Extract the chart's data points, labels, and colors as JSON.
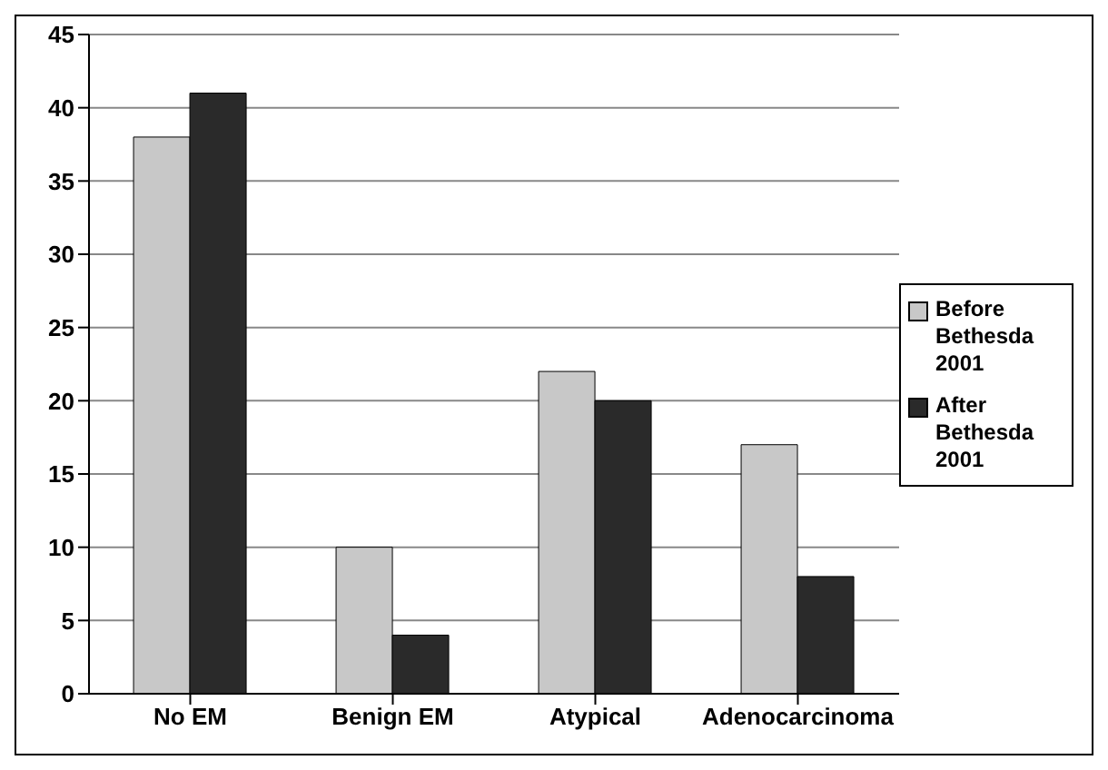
{
  "chart_data": {
    "type": "bar",
    "categories": [
      "No EM",
      "Benign EM",
      "Atypical",
      "Adenocarcinoma"
    ],
    "series": [
      {
        "name": "Before Bethesda 2001",
        "color": "#c8c8c8",
        "values": [
          38,
          10,
          22,
          17
        ]
      },
      {
        "name": "After Bethesda 2001",
        "color": "#2a2a2a",
        "values": [
          41,
          4,
          20,
          8
        ]
      }
    ],
    "ylim": [
      0,
      45
    ],
    "yticks": [
      0,
      5,
      10,
      15,
      20,
      25,
      30,
      35,
      40,
      45
    ],
    "grid": "y",
    "legend": "right"
  }
}
